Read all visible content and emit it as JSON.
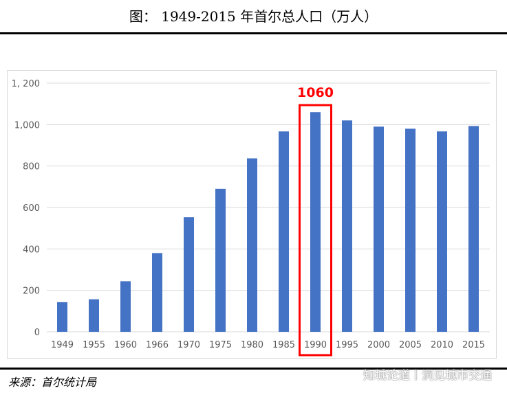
{
  "title": "图：  1949-2015 年首尔总人口（万人）",
  "source": "来源：首尔统计局",
  "watermark": "知城论道丨洞见城市交通",
  "colors": {
    "bar": "#4472c4",
    "highlight": "#ff0000",
    "grid": "#d9d9d9"
  },
  "chart_data": {
    "type": "bar",
    "title": "1949-2015 年首尔总人口（万人）",
    "categories": [
      "1949",
      "1955",
      "1960",
      "1966",
      "1970",
      "1975",
      "1980",
      "1985",
      "1990",
      "1995",
      "2000",
      "2005",
      "2010",
      "2015"
    ],
    "values": [
      143,
      157,
      244,
      380,
      553,
      690,
      837,
      967,
      1060,
      1020,
      990,
      980,
      967,
      993
    ],
    "ylim": [
      0,
      1200
    ],
    "yticks": [
      0,
      200,
      400,
      600,
      800,
      1000,
      1200
    ],
    "ytick_labels": [
      "0",
      "200",
      "400",
      "600",
      "800",
      "1,000",
      "1, 200"
    ],
    "grid": true,
    "annotation": {
      "category": "1990",
      "label": "1060"
    }
  }
}
